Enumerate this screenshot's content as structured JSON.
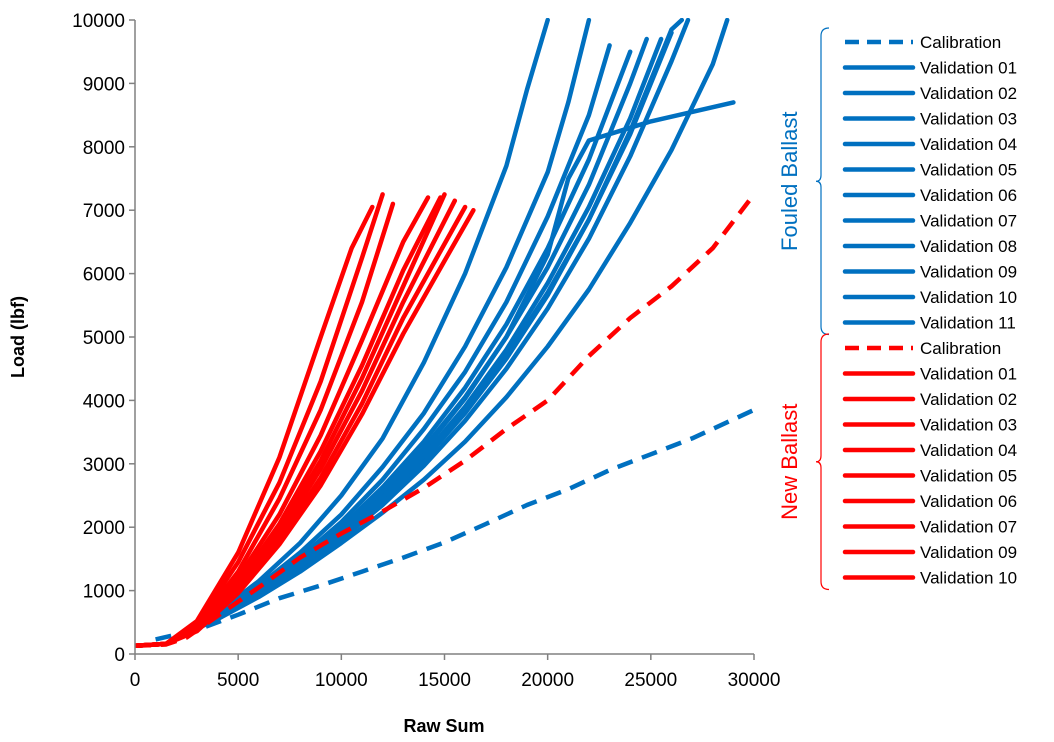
{
  "colors": {
    "fouled": "#0070C0",
    "new": "#FF0000",
    "axis": "#808080"
  },
  "chart_data": {
    "type": "line",
    "title": "",
    "xlabel": "Raw Sum",
    "ylabel": "Load (lbf)",
    "xlim": [
      0,
      30000
    ],
    "ylim": [
      0,
      10000
    ],
    "xticks": [
      "0",
      "5000",
      "10000",
      "15000",
      "20000",
      "25000",
      "30000"
    ],
    "yticks": [
      "0",
      "1000",
      "2000",
      "3000",
      "4000",
      "5000",
      "6000",
      "7000",
      "8000",
      "9000",
      "10000"
    ],
    "grid": false,
    "legend_position": "right",
    "groups": [
      {
        "name": "Fouled Ballast",
        "color": "#0070C0",
        "series": [
          {
            "name": "Calibration",
            "dashed": true,
            "x": [
              1000,
              3000,
              5000,
              7000,
              9000,
              11000,
              13000,
              15000,
              17000,
              19000,
              21000,
              23000,
              25000,
              27000,
              29000,
              30000
            ],
            "y": [
              230,
              380,
              620,
              880,
              1080,
              1300,
              1520,
              1760,
              2050,
              2350,
              2600,
              2900,
              3150,
              3400,
              3700,
              3850
            ]
          },
          {
            "name": "Validation 01",
            "x": [
              2000,
              4000,
              6000,
              8000,
              10000,
              12000,
              14000,
              16000,
              18000,
              19000,
              20000
            ],
            "y": [
              250,
              650,
              1150,
              1750,
              2500,
              3400,
              4600,
              6000,
              7700,
              8900,
              10000
            ]
          },
          {
            "name": "Validation 02",
            "x": [
              2000,
              4000,
              6000,
              8000,
              10000,
              12000,
              14000,
              16000,
              18000,
              20000,
              21000,
              22000
            ],
            "y": [
              250,
              620,
              1080,
              1600,
              2200,
              2950,
              3800,
              4850,
              6100,
              7600,
              8700,
              10000
            ]
          },
          {
            "name": "Validation 03",
            "x": [
              2000,
              4000,
              6000,
              8000,
              10000,
              12000,
              14000,
              16000,
              18000,
              20000,
              22000,
              23000
            ],
            "y": [
              250,
              600,
              1030,
              1520,
              2080,
              2750,
              3550,
              4450,
              5550,
              6900,
              8500,
              9600
            ]
          },
          {
            "name": "Validation 04",
            "x": [
              2000,
              4000,
              6000,
              8000,
              10000,
              12000,
              14000,
              16000,
              18000,
              20000,
              22000,
              24000
            ],
            "y": [
              250,
              590,
              1000,
              1470,
              2000,
              2630,
              3350,
              4200,
              5200,
              6400,
              7800,
              9500
            ]
          },
          {
            "name": "Validation 05",
            "x": [
              2000,
              4000,
              6000,
              8000,
              10000,
              12000,
              14000,
              16000,
              18000,
              20000,
              22000,
              24000,
              24800
            ],
            "y": [
              250,
              580,
              980,
              1430,
              1950,
              2550,
              3250,
              4050,
              5000,
              6100,
              7400,
              9000,
              9700
            ]
          },
          {
            "name": "Validation 06",
            "x": [
              2000,
              4000,
              6000,
              8000,
              10000,
              12000,
              14000,
              16000,
              18000,
              20000,
              22000,
              24000,
              26000
            ],
            "y": [
              250,
              570,
              950,
              1380,
              1870,
              2430,
              3080,
              3830,
              4700,
              5700,
              6850,
              8200,
              9800
            ]
          },
          {
            "name": "Validation 07",
            "x": [
              2000,
              4000,
              6000,
              8000,
              10000,
              12000,
              14000,
              16000,
              18000,
              20000,
              21000,
              22000,
              25000,
              29000
            ],
            "y": [
              250,
              570,
              960,
              1410,
              1920,
              2520,
              3220,
              4030,
              5000,
              6300,
              7500,
              8100,
              8400,
              8700
            ]
          },
          {
            "name": "Validation 08",
            "x": [
              2000,
              4000,
              6000,
              8000,
              10000,
              12000,
              14000,
              16000,
              18000,
              20000,
              22000,
              24000,
              26000,
              26800
            ],
            "y": [
              250,
              560,
              930,
              1340,
              1810,
              2350,
              2970,
              3680,
              4500,
              5450,
              6550,
              7850,
              9350,
              10000
            ]
          },
          {
            "name": "Validation 09",
            "x": [
              2000,
              4000,
              6000,
              8000,
              10000,
              12000,
              14000,
              16000,
              18000,
              20000,
              22000,
              24000,
              26000,
              26500
            ],
            "y": [
              250,
              560,
              940,
              1370,
              1860,
              2420,
              3060,
              3800,
              4660,
              5660,
              6850,
              8250,
              9850,
              10000
            ]
          },
          {
            "name": "Validation 10",
            "x": [
              2000,
              4000,
              6000,
              8000,
              10000,
              12000,
              14000,
              16000,
              18000,
              20000,
              22000,
              24000,
              25500
            ],
            "y": [
              250,
              570,
              950,
              1390,
              1890,
              2470,
              3130,
              3900,
              4800,
              5850,
              7050,
              8450,
              9700
            ]
          },
          {
            "name": "Validation 11",
            "x": [
              2000,
              4000,
              6000,
              8000,
              10000,
              12000,
              14000,
              16000,
              18000,
              20000,
              22000,
              24000,
              26000,
              28000,
              28700
            ],
            "y": [
              250,
              550,
              900,
              1300,
              1750,
              2230,
              2750,
              3350,
              4050,
              4850,
              5750,
              6800,
              7950,
              9300,
              10000
            ]
          }
        ]
      },
      {
        "name": "New Ballast",
        "color": "#FF0000",
        "series": [
          {
            "name": "Calibration",
            "dashed": true,
            "x": [
              0,
              1500,
              2500,
              4000,
              6000,
              8000,
              10000,
              12000,
              14000,
              16000,
              18000,
              20000,
              22000,
              24000,
              26000,
              28000,
              30000
            ],
            "y": [
              130,
              150,
              260,
              600,
              1050,
              1520,
              1900,
              2250,
              2620,
              3050,
              3550,
              4000,
              4700,
              5300,
              5800,
              6400,
              7250
            ]
          },
          {
            "name": "Validation 01",
            "x": [
              0,
              1500,
              3000,
              5000,
              7000,
              9000,
              10500,
              11500
            ],
            "y": [
              130,
              160,
              520,
              1600,
              3100,
              5000,
              6400,
              7050
            ]
          },
          {
            "name": "Validation 02",
            "x": [
              0,
              1500,
              3000,
              5000,
              7000,
              9000,
              11000,
              12000
            ],
            "y": [
              130,
              160,
              480,
              1450,
              2700,
              4300,
              6250,
              7250
            ]
          },
          {
            "name": "Validation 03",
            "x": [
              0,
              1500,
              3000,
              5000,
              7000,
              9000,
              11000,
              12500
            ],
            "y": [
              130,
              160,
              450,
              1300,
              2450,
              3850,
              5550,
              7100
            ]
          },
          {
            "name": "Validation 04",
            "x": [
              0,
              1500,
              3000,
              5000,
              7000,
              9000,
              11000,
              13000,
              14200
            ],
            "y": [
              130,
              160,
              420,
              1200,
              2200,
              3450,
              4950,
              6500,
              7200
            ]
          },
          {
            "name": "Validation 05",
            "x": [
              0,
              1500,
              3000,
              5000,
              7000,
              9000,
              11000,
              13000,
              14800
            ],
            "y": [
              130,
              160,
              400,
              1120,
              2050,
              3200,
              4550,
              6050,
              7200
            ]
          },
          {
            "name": "Validation 06",
            "x": [
              0,
              1500,
              3000,
              5000,
              7000,
              9000,
              11000,
              13000,
              15000
            ],
            "y": [
              130,
              160,
              390,
              1080,
              1960,
              3050,
              4350,
              5800,
              7250
            ]
          },
          {
            "name": "Validation 07",
            "x": [
              0,
              1500,
              3000,
              5000,
              7000,
              9000,
              11000,
              13000,
              15500
            ],
            "y": [
              130,
              160,
              380,
              1040,
              1880,
              2920,
              4150,
              5550,
              7150
            ]
          },
          {
            "name": "Validation 09",
            "x": [
              0,
              1500,
              3000,
              5000,
              7000,
              9000,
              11000,
              13000,
              16000
            ],
            "y": [
              130,
              160,
              370,
              1000,
              1800,
              2780,
              3950,
              5300,
              7050
            ]
          },
          {
            "name": "Validation 10",
            "x": [
              0,
              1500,
              3000,
              5000,
              7000,
              9000,
              11000,
              13000,
              15000,
              16400
            ],
            "y": [
              130,
              160,
              360,
              960,
              1730,
              2660,
              3780,
              5050,
              6200,
              7000
            ]
          }
        ]
      }
    ]
  }
}
